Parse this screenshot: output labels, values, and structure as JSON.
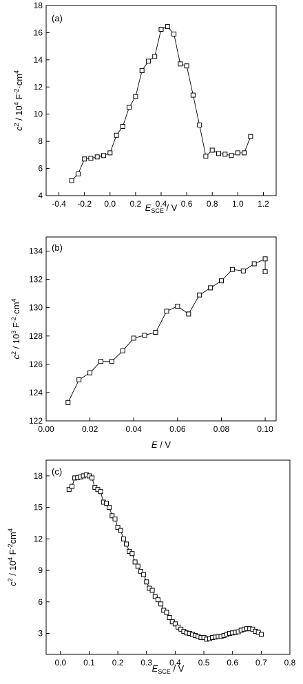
{
  "chart_data": [
    {
      "type": "line",
      "panel_label": "(a)",
      "xlabel": "E",
      "xlabel_sub": "SCE",
      "xlabel_unit": " / V",
      "ylabel": "c",
      "ylabel_sup": "2",
      "ylabel_unit": " / 10",
      "ylabel_unit_sup": "4",
      "ylabel_unit_rest": " F",
      "ylabel_unit_sup2": "-2",
      "ylabel_unit_rest2": "·cm",
      "ylabel_unit_sup3": "4",
      "xlim": [
        -0.5,
        1.3
      ],
      "ylim": [
        4,
        18
      ],
      "xticks": [
        -0.4,
        -0.2,
        0.0,
        0.2,
        0.4,
        0.6,
        0.8,
        1.0,
        1.2
      ],
      "xtick_labels": [
        "-0.4",
        "-0.2",
        "0.0",
        "0.2",
        "0.4",
        "0.6",
        "0.8",
        "1.0",
        "1.2"
      ],
      "yticks": [
        4,
        6,
        8,
        10,
        12,
        14,
        16,
        18
      ],
      "ytick_labels": [
        "4",
        "6",
        "8",
        "10",
        "12",
        "14",
        "16",
        "18"
      ],
      "x": [
        -0.3,
        -0.25,
        -0.2,
        -0.15,
        -0.1,
        -0.05,
        0.0,
        0.05,
        0.1,
        0.15,
        0.2,
        0.25,
        0.3,
        0.35,
        0.4,
        0.45,
        0.5,
        0.55,
        0.6,
        0.65,
        0.7,
        0.75,
        0.8,
        0.85,
        0.9,
        0.95,
        1.0,
        1.05,
        1.1
      ],
      "y": [
        5.1,
        5.6,
        6.7,
        6.75,
        6.85,
        6.95,
        7.15,
        8.45,
        9.1,
        10.5,
        11.3,
        13.2,
        13.9,
        14.25,
        16.25,
        16.45,
        15.9,
        13.7,
        13.55,
        11.4,
        9.2,
        6.9,
        7.35,
        7.1,
        7.05,
        6.95,
        7.15,
        7.15,
        8.35
      ]
    },
    {
      "type": "line",
      "panel_label": "(b)",
      "xlabel": "E",
      "xlabel_sub": "",
      "xlabel_unit": " / V",
      "ylabel": "c",
      "ylabel_sup": "2",
      "ylabel_unit": " / 10",
      "ylabel_unit_sup": "3",
      "ylabel_unit_rest": " F",
      "ylabel_unit_sup2": "-2",
      "ylabel_unit_rest2": "·cm",
      "ylabel_unit_sup3": "4",
      "xlim": [
        0.0,
        0.105
      ],
      "ylim": [
        122,
        135
      ],
      "xticks": [
        0.0,
        0.02,
        0.04,
        0.06,
        0.08,
        0.1
      ],
      "xtick_labels": [
        "0.00",
        "0.02",
        "0.04",
        "0.06",
        "0.08",
        "0.10"
      ],
      "yticks": [
        122,
        124,
        126,
        128,
        130,
        132,
        134
      ],
      "ytick_labels": [
        "122",
        "124",
        "126",
        "128",
        "130",
        "132",
        "134"
      ],
      "x": [
        0.01,
        0.015,
        0.02,
        0.025,
        0.03,
        0.035,
        0.04,
        0.045,
        0.05,
        0.055,
        0.06,
        0.065,
        0.07,
        0.075,
        0.08,
        0.085,
        0.09,
        0.095,
        0.1,
        0.1
      ],
      "y": [
        123.3,
        124.9,
        125.4,
        126.2,
        126.2,
        126.95,
        127.85,
        128.05,
        128.25,
        129.75,
        130.1,
        129.55,
        130.9,
        131.4,
        131.9,
        132.7,
        132.6,
        133.1,
        133.45,
        132.55
      ]
    },
    {
      "type": "line",
      "panel_label": "(c)",
      "xlabel": "E",
      "xlabel_sub": "SCE",
      "xlabel_unit": " / V",
      "ylabel": "c",
      "ylabel_sup": "2",
      "ylabel_unit": " / 10",
      "ylabel_unit_sup": "4",
      "ylabel_unit_rest": " F",
      "ylabel_unit_sup2": "-2",
      "ylabel_unit_rest2": "cm",
      "ylabel_unit_sup3": "4",
      "xlim": [
        -0.05,
        0.8
      ],
      "ylim": [
        1,
        19.5
      ],
      "xticks": [
        0.0,
        0.1,
        0.2,
        0.3,
        0.4,
        0.5,
        0.6,
        0.7,
        0.8
      ],
      "xtick_labels": [
        "0.0",
        "0.1",
        "0.2",
        "0.3",
        "0.4",
        "0.5",
        "0.6",
        "0.7",
        "0.8"
      ],
      "yticks": [
        3,
        6,
        9,
        12,
        15,
        18
      ],
      "ytick_labels": [
        "3",
        "6",
        "9",
        "12",
        "15",
        "18"
      ],
      "x": [
        0.03,
        0.04,
        0.05,
        0.06,
        0.07,
        0.08,
        0.09,
        0.1,
        0.11,
        0.12,
        0.13,
        0.14,
        0.15,
        0.16,
        0.17,
        0.18,
        0.19,
        0.2,
        0.21,
        0.22,
        0.23,
        0.24,
        0.25,
        0.26,
        0.27,
        0.28,
        0.29,
        0.3,
        0.31,
        0.32,
        0.33,
        0.34,
        0.35,
        0.36,
        0.37,
        0.38,
        0.39,
        0.4,
        0.41,
        0.42,
        0.43,
        0.44,
        0.45,
        0.46,
        0.47,
        0.48,
        0.49,
        0.5,
        0.51,
        0.52,
        0.53,
        0.54,
        0.55,
        0.56,
        0.57,
        0.58,
        0.59,
        0.6,
        0.61,
        0.62,
        0.63,
        0.64,
        0.65,
        0.66,
        0.67,
        0.68,
        0.69,
        0.7
      ],
      "y": [
        16.7,
        17.0,
        17.8,
        17.85,
        17.9,
        18.0,
        18.1,
        18.0,
        17.8,
        16.9,
        16.7,
        16.5,
        15.5,
        15.4,
        15.0,
        14.2,
        13.9,
        13.1,
        12.8,
        12.0,
        11.5,
        10.8,
        10.6,
        9.8,
        9.4,
        8.9,
        8.6,
        7.9,
        7.3,
        7.1,
        6.5,
        6.2,
        5.8,
        5.2,
        5.0,
        4.5,
        4.1,
        3.9,
        3.6,
        3.4,
        3.2,
        3.05,
        3.0,
        2.9,
        2.8,
        2.7,
        2.6,
        2.6,
        2.45,
        2.5,
        2.6,
        2.65,
        2.7,
        2.7,
        2.8,
        2.9,
        3.0,
        3.05,
        3.1,
        3.15,
        3.3,
        3.4,
        3.45,
        3.45,
        3.4,
        3.2,
        3.1,
        2.9
      ]
    }
  ]
}
